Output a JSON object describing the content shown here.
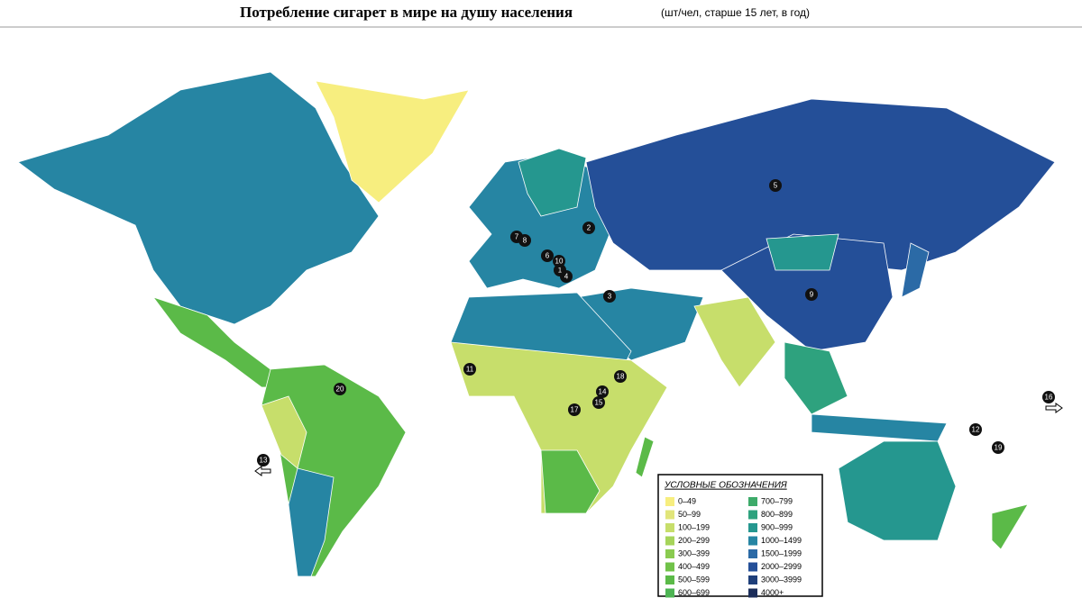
{
  "header": {
    "title": "Потребление сигарет в мире на душу населения",
    "subtitle": "(шт/чел, старше 15 лет, в год)"
  },
  "legend": {
    "title": "УСЛОВНЫЕ ОБОЗНАЧЕНИЯ",
    "items": [
      {
        "label": "0–49",
        "color": "#f7ee7f"
      },
      {
        "label": "50–99",
        "color": "#e1e57a"
      },
      {
        "label": "100–199",
        "color": "#c7de6b"
      },
      {
        "label": "200–299",
        "color": "#a6d45a"
      },
      {
        "label": "300–399",
        "color": "#8acb50"
      },
      {
        "label": "400–499",
        "color": "#70c249"
      },
      {
        "label": "500–599",
        "color": "#5bba48"
      },
      {
        "label": "600–699",
        "color": "#4db453"
      },
      {
        "label": "700–799",
        "color": "#3dab6a"
      },
      {
        "label": "800–899",
        "color": "#2ea27e"
      },
      {
        "label": "900–999",
        "color": "#25978f"
      },
      {
        "label": "1000–1499",
        "color": "#2685a3"
      },
      {
        "label": "1500–1999",
        "color": "#2b6aa6"
      },
      {
        "label": "2000–2999",
        "color": "#244f98"
      },
      {
        "label": "3000–3999",
        "color": "#1f3f7a"
      },
      {
        "label": "4000+",
        "color": "#1c2e5a"
      }
    ]
  },
  "markers": [
    "1",
    "2",
    "3",
    "4",
    "5",
    "6",
    "7",
    "8",
    "9",
    "10",
    "11",
    "12",
    "13",
    "14",
    "15",
    "16",
    "17",
    "18",
    "19",
    "20"
  ]
}
